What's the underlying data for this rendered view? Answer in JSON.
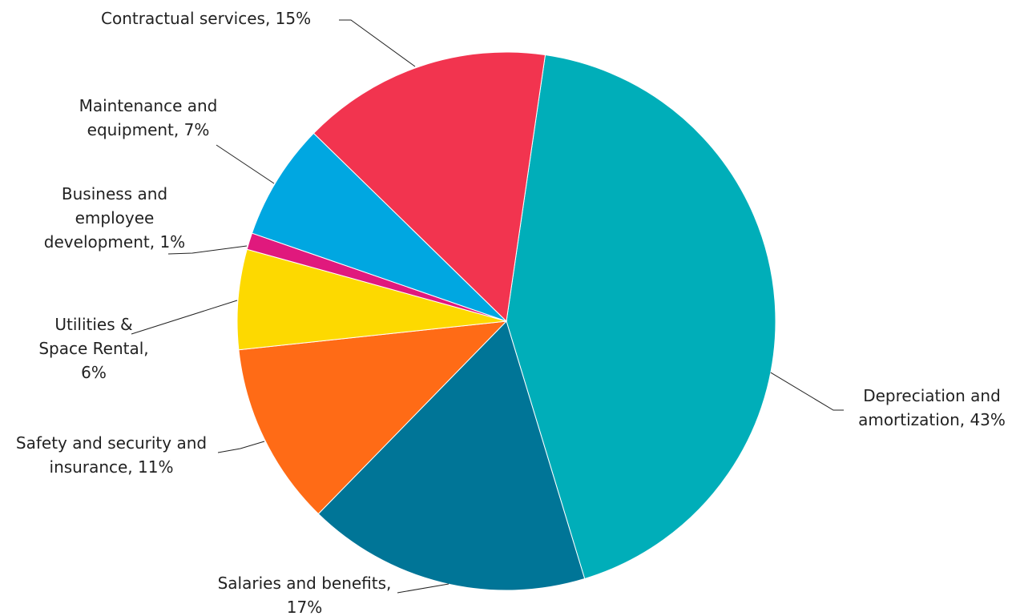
{
  "chart_data": {
    "type": "pie",
    "title": "",
    "slices": [
      {
        "category": "Depreciation and amortization",
        "value": 43,
        "label": "43%",
        "color": "#00aeb9",
        "label_lines": [
          "Depreciation and",
          "amortization, 43%"
        ]
      },
      {
        "category": "Salaries and benefits",
        "value": 17,
        "label": "17%",
        "color": "#007597",
        "label_lines": [
          "Salaries and benefits,",
          "17%"
        ]
      },
      {
        "category": "Safety and security and insurance",
        "value": 11,
        "label": "11%",
        "color": "#ff6b16",
        "label_lines": [
          "Safety and security and",
          "insurance, 11%"
        ]
      },
      {
        "category": "Utilities & Space Rental",
        "value": 6,
        "label": "6%",
        "color": "#fdd900",
        "label_lines": [
          "Utilities &",
          "Space Rental,",
          "6%"
        ]
      },
      {
        "category": "Business and employee development",
        "value": 1,
        "label": "1%",
        "color": "#e0197d",
        "label_lines": [
          "Business and",
          "employee",
          "development, 1%"
        ]
      },
      {
        "category": "Maintenance and equipment",
        "value": 7,
        "label": "7%",
        "color": "#00a7e1",
        "label_lines": [
          "Maintenance and",
          "equipment, 7%"
        ]
      },
      {
        "category": "Contractual services",
        "value": 15,
        "label": "15%",
        "color": "#f2344f",
        "label_lines": [
          "Contractual services, 15%"
        ]
      }
    ],
    "legend": "none",
    "data_labels": "outside with leader lines"
  }
}
